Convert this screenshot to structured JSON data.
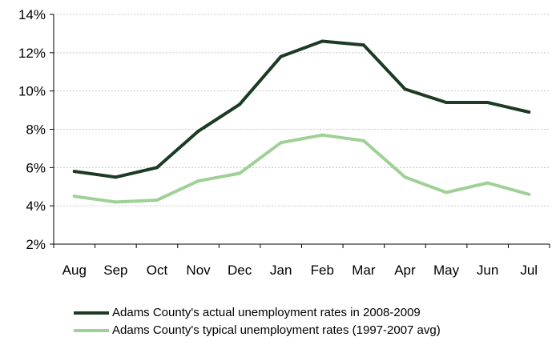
{
  "chart_data": {
    "type": "line",
    "title": "",
    "xlabel": "",
    "ylabel": "",
    "categories": [
      "Aug",
      "Sep",
      "Oct",
      "Nov",
      "Dec",
      "Jan",
      "Feb",
      "Mar",
      "Apr",
      "May",
      "Jun",
      "Jul"
    ],
    "ylim": [
      2,
      14
    ],
    "y_ticks": [
      2,
      4,
      6,
      8,
      10,
      12,
      14
    ],
    "y_tick_labels": [
      "2%",
      "4%",
      "6%",
      "8%",
      "10%",
      "12%",
      "14%"
    ],
    "y_grid": true,
    "legend_position": "bottom",
    "series": [
      {
        "name": "Adams County's actual unemployment rates in 2008-2009",
        "color": "#1c3a24",
        "values": [
          5.8,
          5.5,
          6.0,
          7.9,
          9.3,
          11.8,
          12.6,
          12.4,
          10.1,
          9.4,
          9.4,
          8.9
        ]
      },
      {
        "name": "Adams County's typical unemployment rates (1997-2007 avg)",
        "color": "#9fd197",
        "values": [
          4.5,
          4.2,
          4.3,
          5.3,
          5.7,
          7.3,
          7.7,
          7.4,
          5.5,
          4.7,
          5.2,
          4.6
        ]
      }
    ]
  }
}
